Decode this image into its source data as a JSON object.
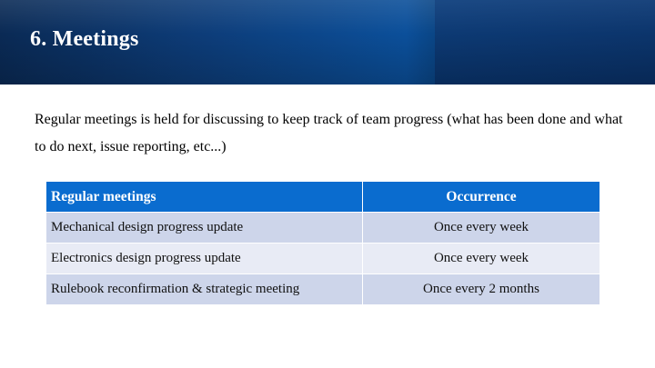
{
  "slide": {
    "title": "6. Meetings",
    "intro": "Regular meetings is held for discussing to keep track of team progress (what has been done and what to do next, issue reporting, etc...)"
  },
  "table": {
    "headers": {
      "name": "Regular meetings",
      "occurrence": "Occurrence"
    },
    "rows": [
      {
        "name": "Mechanical design progress update",
        "occurrence": "Once every week"
      },
      {
        "name": "Electronics design progress update",
        "occurrence": "Once every week"
      },
      {
        "name": "Rulebook reconfirmation & strategic meeting",
        "occurrence": "Once every 2 months"
      }
    ]
  },
  "colors": {
    "header_band": "#0b3f80",
    "table_header": "#0a6ccf",
    "row_dark": "#cdd5ea",
    "row_light": "#e8ebf5"
  }
}
